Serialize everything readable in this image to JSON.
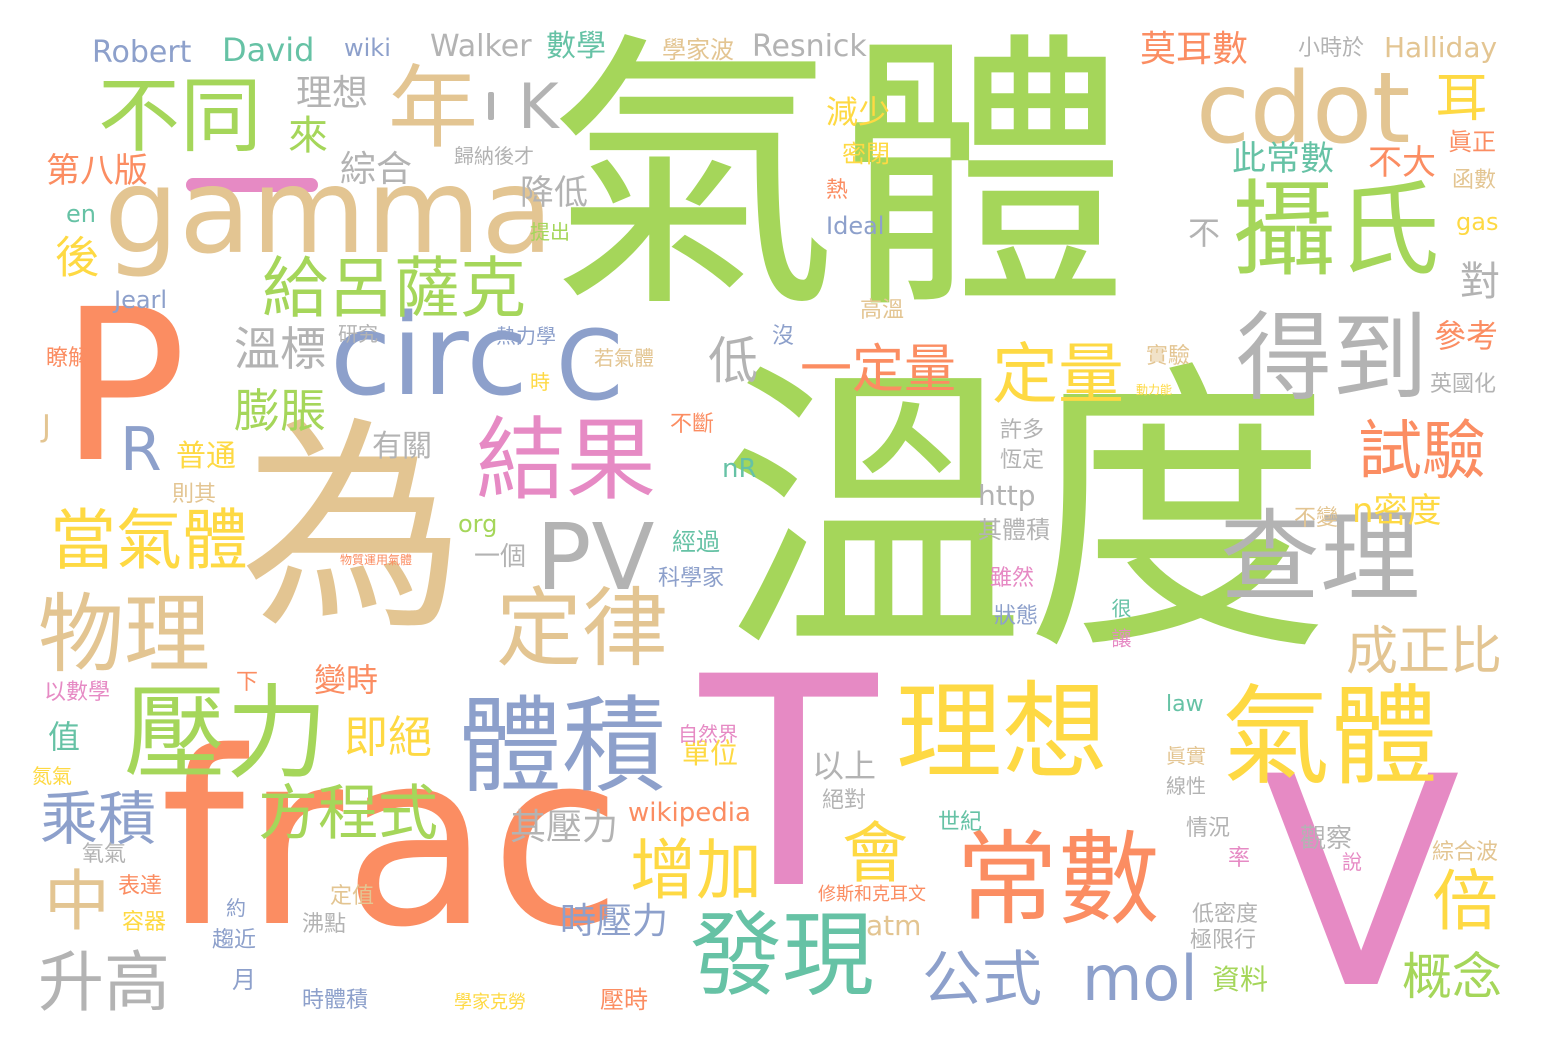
{
  "palette": {
    "green": "#a5d65a",
    "orange": "#fb8d62",
    "tan": "#e3c592",
    "pink": "#e68ac4",
    "blue": "#8da0cb",
    "teal": "#66c2a5",
    "yellow": "#fed943",
    "gray": "#b3b3b3"
  },
  "words": {
    "qiti_big": "氣體",
    "wendu": "溫度",
    "wei": "為",
    "frac": "frac",
    "p": "P",
    "t": "T",
    "v": "V",
    "gamma": "gamma",
    "nian": "年",
    "butong": "不同",
    "cdot": "cdot",
    "sheshi": "攝氏",
    "dedao": "得到",
    "circ": "circ",
    "c": "C",
    "k": "K",
    "er": "耳",
    "geilusake": "給呂薩克",
    "jieguo": "結果",
    "pv": "PV",
    "r": "R",
    "chali": "查理",
    "dingliang": "定量",
    "yidingliang": "一定量",
    "shiyan": "試驗",
    "dangqiti": "當氣體",
    "wuli": "物理",
    "dinglu": "定律",
    "yali": "壓力",
    "tiji": "體積",
    "lixiang": "理想",
    "qiti2": "氣體",
    "changshu": "常數",
    "faxian": "發現",
    "zengjia": "增加",
    "hui": "會",
    "bei": "倍",
    "fangchengshi": "方程式",
    "chengji": "乘積",
    "zhong": "中",
    "shenggao": "升高",
    "gongshi": "公式",
    "mol": "mol",
    "gainian": "概念",
    "chengzhengbi": "成正比",
    "lai": "來",
    "hou": "後",
    "wenbiao": "溫標",
    "pengzhang": "膨脹",
    "di": "低",
    "jijue": "即絕",
    "shiyali": "時壓力",
    "qiyali": "其壓力",
    "robert": "Robert",
    "david": "David",
    "wiki": "wiki",
    "walker": "Walker",
    "shuxue": "數學",
    "xuejiabo": "學家波",
    "resnick": "Resnick",
    "halliday": "Halliday",
    "xiaoshiyu": "小時於",
    "moershu": "莫耳數",
    "bachangshu": "此常數",
    "buda": "不大",
    "zonghe": "綜合",
    "lixiang_s": "理想",
    "guinahoucai": "歸納後才",
    "dibaban": "第八版",
    "en": "en",
    "jiangdi": "降低",
    "tichu": "提出",
    "ideal": "Ideal",
    "gas": "gas",
    "jearl": "Jearl",
    "dui": "對",
    "bu": "不",
    "jianshao": "減少",
    "mibi": "密閉",
    "re": "熱",
    "zhenzheng": "眞正",
    "hanshu": "函數",
    "yanjiu": "研究",
    "relixue": "熱力學",
    "mei": "沒",
    "gaowen": "高溫",
    "cankao": "參考",
    "liaojie": "瞭解",
    "ruoqiti": "若氣體",
    "shi": "時",
    "shiyan2": "實驗",
    "donglineng": "動力能",
    "yingguohua": "英國化",
    "j": "J",
    "youguan": "有關",
    "buduan": "不斷",
    "xuduo": "許多",
    "hengding": "恆定",
    "putong": "普通",
    "nr": "nR",
    "zeqi": "則其",
    "http": "http",
    "n_midu": "n密度",
    "org": "org",
    "qitiji": "其體積",
    "bubian": "不變",
    "yige": "一個",
    "jingguo": "經過",
    "kexuejia": "科學家",
    "suiran": "雖然",
    "zhuangtai": "狀態",
    "hen": "很",
    "rang": "讓",
    "yishuxue": "以數學",
    "xia": "下",
    "bianshi": "變時",
    "zhi": "值",
    "danwei": "單位",
    "yishang": "以上",
    "ziranjie": "自然界",
    "juedui": "絕對",
    "law": "law",
    "zhenshi": "眞實",
    "xianxing": "線性",
    "danqi": "氮氣",
    "yangqi": "氧氣",
    "wikipedia": "wikipedia",
    "shiji": "世紀",
    "qingkuang": "情況",
    "guancha": "觀察",
    "zonghebo": "綜合波",
    "lv": "率",
    "shuo": "說",
    "biaoda": "表達",
    "rongqi": "容器",
    "yue": "約",
    "qujin": "趨近",
    "dingzhi": "定值",
    "feidian": "沸點",
    "xiusi": "修斯和克耳文",
    "atm": "atm",
    "dimidu": "低密度",
    "jixianxing": "極限行",
    "yue2": "月",
    "shitiji": "時體積",
    "xuejiakelao": "學家克勞",
    "ziliao": "資料",
    "yashi": "壓時",
    "tiny_left": "物質運用氣體"
  }
}
